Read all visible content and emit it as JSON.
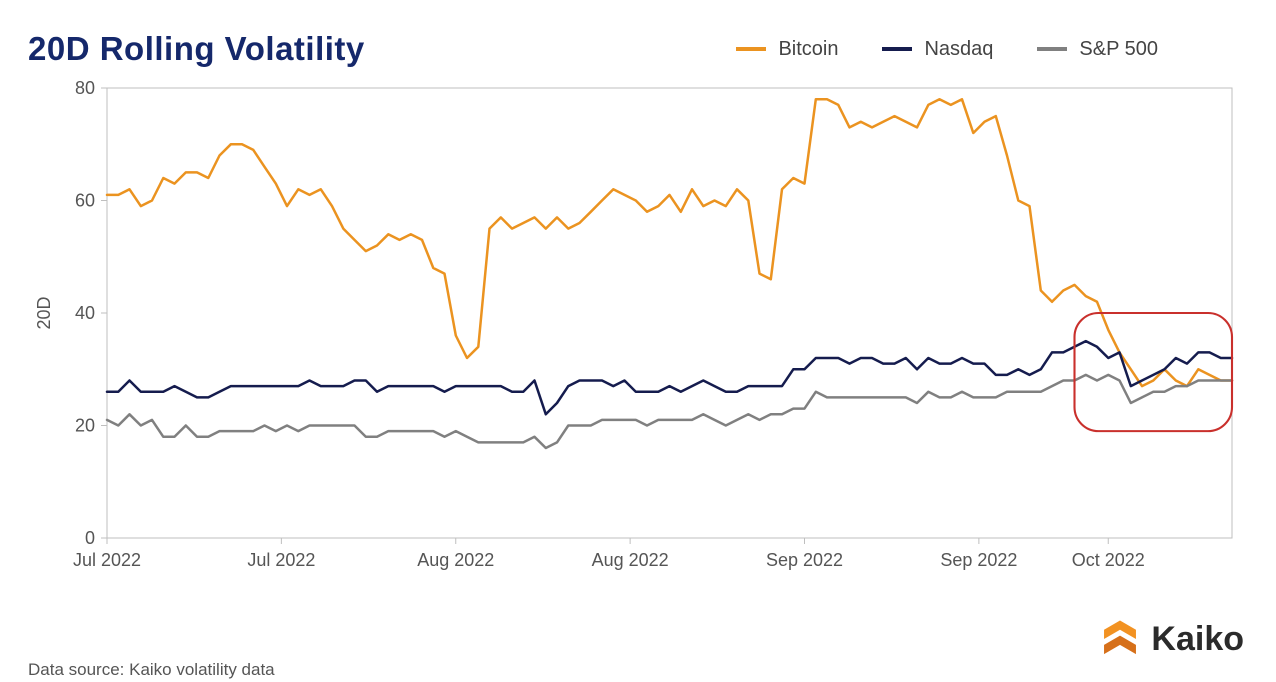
{
  "chart": {
    "type": "line",
    "title": "20D Rolling Volatility",
    "ylabel": "20D",
    "ylim": [
      0,
      80
    ],
    "ytick_step": 20,
    "yticks": [
      0,
      20,
      40,
      60,
      80
    ],
    "background_color": "#ffffff",
    "plot_border_color": "#bfbfbf",
    "grid_on": false,
    "line_width": 2.5,
    "annotation": {
      "type": "rounded-rect",
      "x_range": [
        86,
        100
      ],
      "y_range": [
        19,
        40
      ],
      "stroke": "#c9302c",
      "stroke_width": 2.1,
      "rx": 24
    },
    "xtick_labels": [
      "Jul 2022",
      "Jul 2022",
      "Aug 2022",
      "Aug 2022",
      "Sep 2022",
      "Sep 2022",
      "Oct 2022"
    ],
    "xtick_positions": [
      0,
      15.5,
      31,
      46.5,
      62,
      77.5,
      89
    ],
    "label_fontsize": 18,
    "title_fontsize": 33,
    "title_color": "#15286b",
    "series": [
      {
        "name": "Bitcoin",
        "color": "#eb9320",
        "data": [
          61,
          61,
          62,
          59,
          60,
          64,
          63,
          65,
          65,
          64,
          68,
          70,
          70,
          69,
          66,
          63,
          59,
          62,
          61,
          62,
          59,
          55,
          53,
          51,
          52,
          54,
          53,
          54,
          53,
          48,
          47,
          36,
          32,
          34,
          55,
          57,
          55,
          56,
          57,
          55,
          57,
          55,
          56,
          58,
          60,
          62,
          61,
          60,
          58,
          59,
          61,
          58,
          62,
          59,
          60,
          59,
          62,
          60,
          47,
          46,
          62,
          64,
          63,
          78,
          78,
          77,
          73,
          74,
          73,
          74,
          75,
          74,
          73,
          77,
          78,
          77,
          78,
          72,
          74,
          75,
          68,
          60,
          59,
          44,
          42,
          44,
          45,
          43,
          42,
          37,
          33,
          30,
          27,
          28,
          30,
          28,
          27,
          30,
          29,
          28,
          28
        ]
      },
      {
        "name": "Nasdaq",
        "color": "#151c4e",
        "data": [
          26,
          26,
          28,
          26,
          26,
          26,
          27,
          26,
          25,
          25,
          26,
          27,
          27,
          27,
          27,
          27,
          27,
          27,
          28,
          27,
          27,
          27,
          28,
          28,
          26,
          27,
          27,
          27,
          27,
          27,
          26,
          27,
          27,
          27,
          27,
          27,
          26,
          26,
          28,
          22,
          24,
          27,
          28,
          28,
          28,
          27,
          28,
          26,
          26,
          26,
          27,
          26,
          27,
          28,
          27,
          26,
          26,
          27,
          27,
          27,
          27,
          30,
          30,
          32,
          32,
          32,
          31,
          32,
          32,
          31,
          31,
          32,
          30,
          32,
          31,
          31,
          32,
          31,
          31,
          29,
          29,
          30,
          29,
          30,
          33,
          33,
          34,
          35,
          34,
          32,
          33,
          27,
          28,
          29,
          30,
          32,
          31,
          33,
          33,
          32,
          32
        ]
      },
      {
        "name": "S&P 500",
        "color": "#808080",
        "data": [
          21,
          20,
          22,
          20,
          21,
          18,
          18,
          20,
          18,
          18,
          19,
          19,
          19,
          19,
          20,
          19,
          20,
          19,
          20,
          20,
          20,
          20,
          20,
          18,
          18,
          19,
          19,
          19,
          19,
          19,
          18,
          19,
          18,
          17,
          17,
          17,
          17,
          17,
          18,
          16,
          17,
          20,
          20,
          20,
          21,
          21,
          21,
          21,
          20,
          21,
          21,
          21,
          21,
          22,
          21,
          20,
          21,
          22,
          21,
          22,
          22,
          23,
          23,
          26,
          25,
          25,
          25,
          25,
          25,
          25,
          25,
          25,
          24,
          26,
          25,
          25,
          26,
          25,
          25,
          25,
          26,
          26,
          26,
          26,
          27,
          28,
          28,
          29,
          28,
          29,
          28,
          24,
          25,
          26,
          26,
          27,
          27,
          28,
          28,
          28,
          28
        ]
      }
    ]
  },
  "legend": {
    "items": [
      "Bitcoin",
      "Nasdaq",
      "S&P 500"
    ],
    "colors": [
      "#eb9320",
      "#151c4e",
      "#808080"
    ],
    "fontsize": 20
  },
  "footer": {
    "source_text": "Data source: Kaiko volatility data",
    "source_color": "#555555"
  },
  "brand": {
    "name": "Kaiko",
    "icon_colors": [
      "#f29222",
      "#d6701a"
    ],
    "text_color": "#2b2b2b"
  }
}
